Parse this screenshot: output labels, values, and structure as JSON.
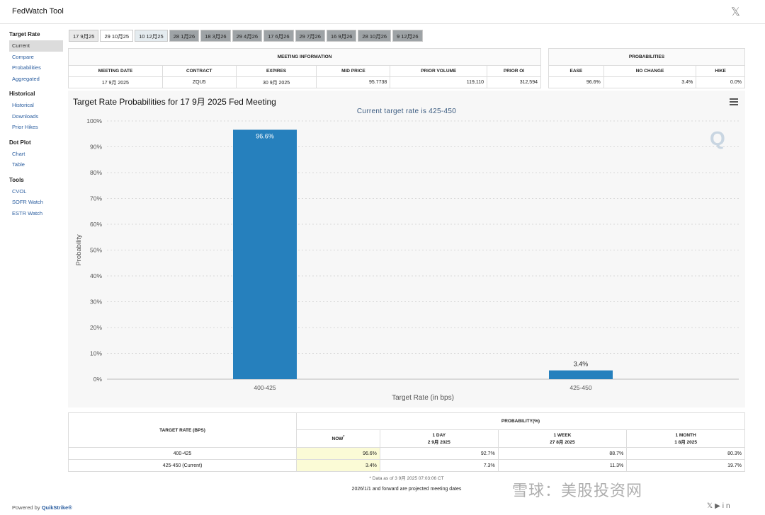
{
  "app": {
    "title": "FedWatch Tool",
    "close_label": "𝕏"
  },
  "sidebar": {
    "sections": [
      {
        "heading": "Target Rate",
        "items": [
          "Current",
          "Compare",
          "Probabilities",
          "Aggregated"
        ]
      },
      {
        "heading": "Historical",
        "items": [
          "Historical",
          "Downloads",
          "Prior Hikes"
        ]
      },
      {
        "heading": "Dot Plot",
        "items": [
          "Chart",
          "Table"
        ]
      },
      {
        "heading": "Tools",
        "items": [
          "CVOL",
          "SOFR Watch",
          "ESTR Watch"
        ]
      }
    ],
    "active_item": "Current"
  },
  "tabs": [
    "17 9月25",
    "29 10月25",
    "10 12月25",
    "28 1月26",
    "18 3月26",
    "29 4月26",
    "17 6月26",
    "29 7月26",
    "16 9月26",
    "28 10月26",
    "9 12月26"
  ],
  "meeting_info": {
    "title": "MEETING INFORMATION",
    "headers": [
      "MEETING DATE",
      "CONTRACT",
      "EXPIRES",
      "MID PRICE",
      "PRIOR VOLUME",
      "PRIOR OI"
    ],
    "values": [
      "17 9月 2025",
      "ZQU5",
      "30 9月 2025",
      "95.7738",
      "119,110",
      "312,594"
    ]
  },
  "probabilities": {
    "title": "PROBABILITIES",
    "headers": [
      "EASE",
      "NO CHANGE",
      "HIKE"
    ],
    "values": [
      "96.6%",
      "3.4%",
      "0.0%"
    ]
  },
  "chart": {
    "title": "Target Rate Probabilities for 17 9月 2025 Fed Meeting",
    "subtitle": "Current target rate is 425-450",
    "menu_icon": "hamburger-menu-icon",
    "logo_text": "Q"
  },
  "chart_data": {
    "type": "bar",
    "categories": [
      "400-425",
      "425-450"
    ],
    "values": [
      96.6,
      3.4
    ],
    "data_labels": [
      "96.6%",
      "3.4%"
    ],
    "xlabel": "Target Rate (in bps)",
    "ylabel": "Probability",
    "ylim": [
      0,
      100
    ],
    "yticks": [
      "0%",
      "10%",
      "20%",
      "30%",
      "40%",
      "50%",
      "60%",
      "70%",
      "80%",
      "90%",
      "100%"
    ],
    "grid": true,
    "bar_color": "#2680bd"
  },
  "bottom_table": {
    "rate_header": "TARGET RATE (BPS)",
    "prob_header": "PROBABILITY(%)",
    "columns": [
      {
        "line1": "NOW",
        "line2": ""
      },
      {
        "line1": "1 DAY",
        "line2": "2 9月 2025"
      },
      {
        "line1": "1 WEEK",
        "line2": "27 8月 2025"
      },
      {
        "line1": "1 MONTH",
        "line2": "1 8月 2025"
      }
    ],
    "rows": [
      {
        "rate": "400-425",
        "values": [
          "96.6%",
          "92.7%",
          "88.7%",
          "80.3%"
        ]
      },
      {
        "rate": "425-450 (Current)",
        "values": [
          "3.4%",
          "7.3%",
          "11.3%",
          "19.7%"
        ]
      }
    ]
  },
  "footnote": "* Data as of 3 9月 2025 07:03:06 CT",
  "projected_note": "2026/1/1 and forward are projected meeting dates",
  "powered_by": {
    "prefix": "Powered by",
    "brand": "QuikStrike®"
  },
  "watermark": "雪球：美股投资网",
  "social_icons": [
    "x-icon",
    "youtube-icon",
    "linkedin-icon"
  ]
}
